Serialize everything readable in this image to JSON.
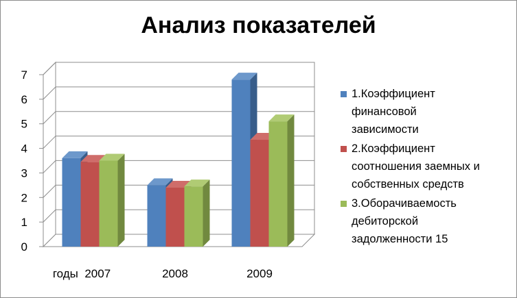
{
  "chart_data": {
    "type": "bar",
    "title": "Анализ показателей",
    "categories": [
      "годы  2007",
      "2008",
      "2009"
    ],
    "series": [
      {
        "name": "1.Коэффициент\nфинансовой\nзависимости",
        "values": [
          3.6,
          2.5,
          6.8
        ],
        "color": "#4f81bd",
        "side_color": "#385d8a",
        "top_color": "#6d98cb"
      },
      {
        "name": "2.Коэффициент\nсоотношения заемных и\nсобственных средств",
        "values": [
          3.45,
          2.4,
          4.35
        ],
        "color": "#c0504d",
        "side_color": "#8c3836",
        "top_color": "#cf6d6a"
      },
      {
        "name": "3.Оборачиваемость\nдебиторской\nзадолженности 15",
        "values": [
          3.5,
          2.45,
          5.1
        ],
        "color": "#9bbb59",
        "side_color": "#71893f",
        "top_color": "#b0cb74"
      }
    ],
    "yticks": [
      "0",
      "1",
      "2",
      "3",
      "4",
      "5",
      "6",
      "7"
    ],
    "ylim": [
      0,
      7
    ],
    "grid": true,
    "legend_position": "right",
    "style": "3d-clustered-column"
  }
}
